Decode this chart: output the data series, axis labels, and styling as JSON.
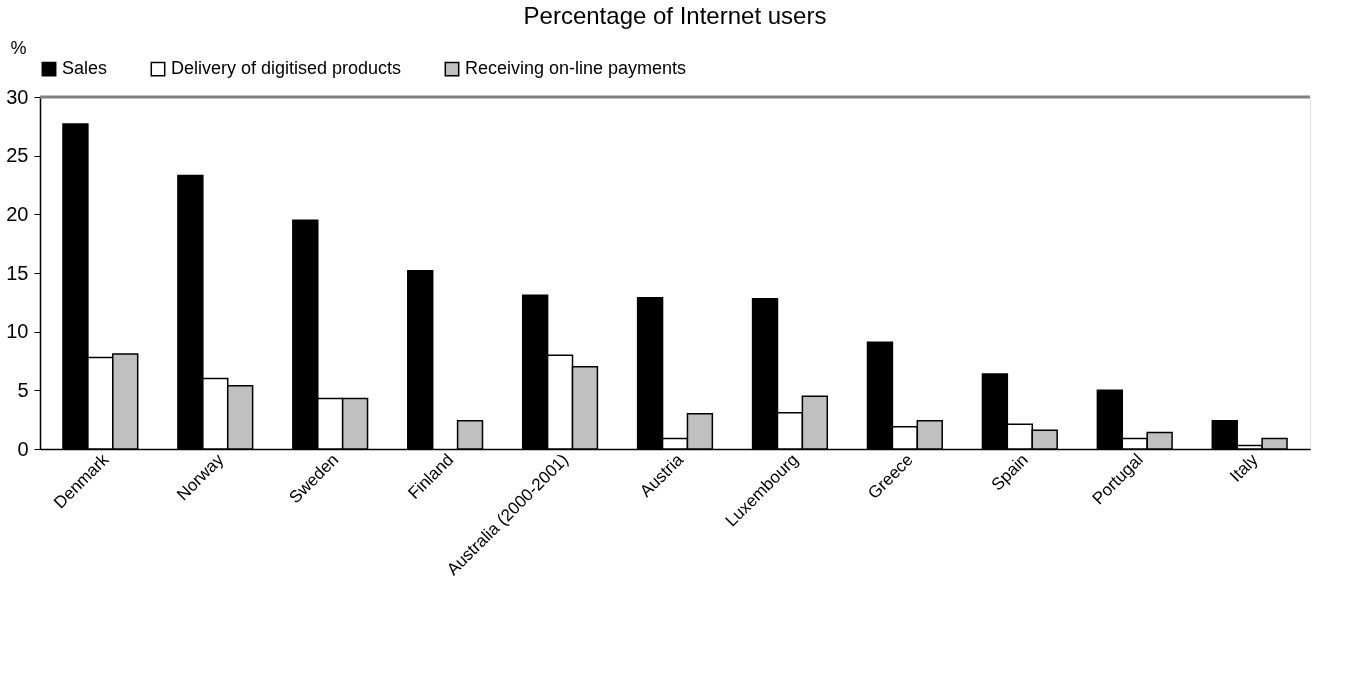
{
  "chart_data": {
    "type": "bar",
    "title": "Percentage of Internet users",
    "ylabel": "%",
    "categories": [
      "Denmark",
      "Norway",
      "Sweden",
      "Finland",
      "Australia (2000-2001)",
      "Austria",
      "Luxembourg",
      "Greece",
      "Spain",
      "Portugal",
      "Italy"
    ],
    "series": [
      {
        "name": "Sales",
        "color": "#000000",
        "values": [
          27.7,
          23.3,
          19.5,
          15.2,
          13.1,
          12.9,
          12.8,
          9.1,
          6.4,
          5.0,
          2.4
        ]
      },
      {
        "name": "Delivery of digitised products",
        "color": "#ffffff",
        "values": [
          7.8,
          6.0,
          4.3,
          null,
          8.0,
          0.9,
          3.1,
          1.9,
          2.1,
          0.9,
          0.3
        ]
      },
      {
        "name": "Receiving on-line payments",
        "color": "#c0c0c0",
        "values": [
          8.1,
          5.4,
          4.3,
          2.4,
          7.0,
          3.0,
          4.5,
          2.4,
          1.6,
          1.4,
          0.9
        ]
      }
    ],
    "ylim": [
      0,
      30
    ],
    "yticks": [
      0,
      5,
      10,
      15,
      20,
      25,
      30
    ],
    "grid": false,
    "legend": "top"
  }
}
